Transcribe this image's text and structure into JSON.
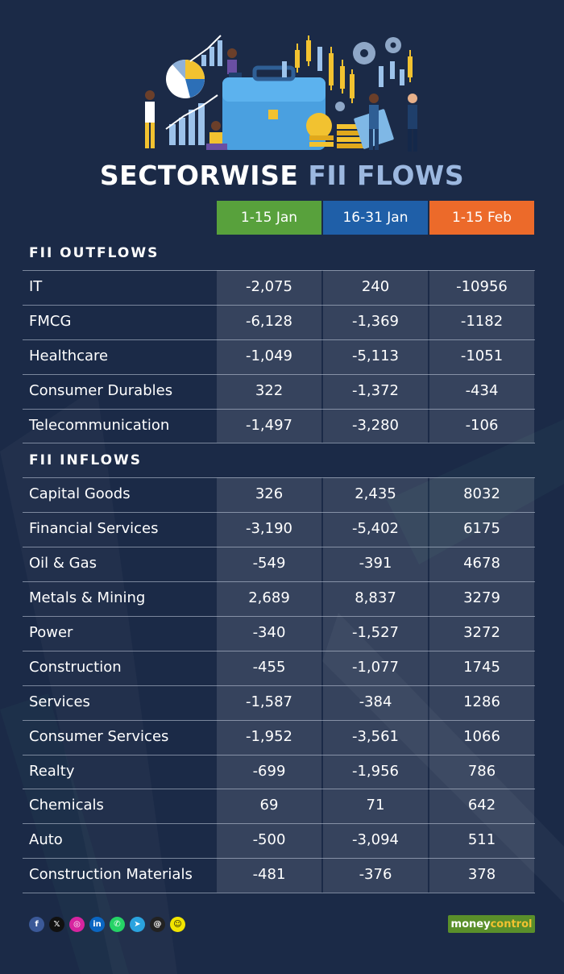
{
  "title": {
    "part1": "SECTORWISE",
    "part2": "FII FLOWS"
  },
  "colors": {
    "jan1": "#58a13c",
    "jan2": "#1f5fa8",
    "feb1": "#ec6a2a",
    "background": "#1b2a47"
  },
  "chart_data": {
    "type": "table",
    "columns": [
      "1-15 Jan",
      "16-31 Jan",
      "1-15 Feb"
    ],
    "sections": [
      {
        "label": "FII OUTFLOWS",
        "rows": [
          {
            "sector": "IT",
            "values": [
              "-2,075",
              "240",
              "-10956"
            ]
          },
          {
            "sector": "FMCG",
            "values": [
              "-6,128",
              "-1,369",
              "-1182"
            ]
          },
          {
            "sector": "Healthcare",
            "values": [
              "-1,049",
              "-5,113",
              "-1051"
            ]
          },
          {
            "sector": "Consumer Durables",
            "values": [
              "322",
              "-1,372",
              "-434"
            ]
          },
          {
            "sector": "Telecommunication",
            "values": [
              "-1,497",
              "-3,280",
              "-106"
            ]
          }
        ]
      },
      {
        "label": "FII INFLOWS",
        "rows": [
          {
            "sector": "Capital Goods",
            "values": [
              "326",
              "2,435",
              "8032"
            ]
          },
          {
            "sector": "Financial Services",
            "values": [
              "-3,190",
              "-5,402",
              "6175"
            ]
          },
          {
            "sector": "Oil & Gas",
            "values": [
              "-549",
              "-391",
              "4678"
            ]
          },
          {
            "sector": "Metals & Mining",
            "values": [
              "2,689",
              "8,837",
              "3279"
            ]
          },
          {
            "sector": "Power",
            "values": [
              "-340",
              "-1,527",
              "3272"
            ]
          },
          {
            "sector": "Construction",
            "values": [
              "-455",
              "-1,077",
              "1745"
            ]
          },
          {
            "sector": "Services",
            "values": [
              "-1,587",
              "-384",
              "1286"
            ]
          },
          {
            "sector": "Consumer Services",
            "values": [
              "-1,952",
              "-3,561",
              "1066"
            ]
          },
          {
            "sector": "Realty",
            "values": [
              "-699",
              "-1,956",
              "786"
            ]
          },
          {
            "sector": "Chemicals",
            "values": [
              "69",
              "71",
              "642"
            ]
          },
          {
            "sector": "Auto",
            "values": [
              "-500",
              "-3,094",
              "511"
            ]
          },
          {
            "sector": "Construction Materials",
            "values": [
              "-481",
              "-376",
              "378"
            ]
          }
        ]
      }
    ]
  },
  "footer": {
    "icons": [
      "facebook-icon",
      "x-icon",
      "instagram-icon",
      "linkedin-icon",
      "whatsapp-icon",
      "telegram-icon",
      "threads-icon",
      "snapchat-icon"
    ],
    "logo_part1": "money",
    "logo_part2": "control"
  }
}
